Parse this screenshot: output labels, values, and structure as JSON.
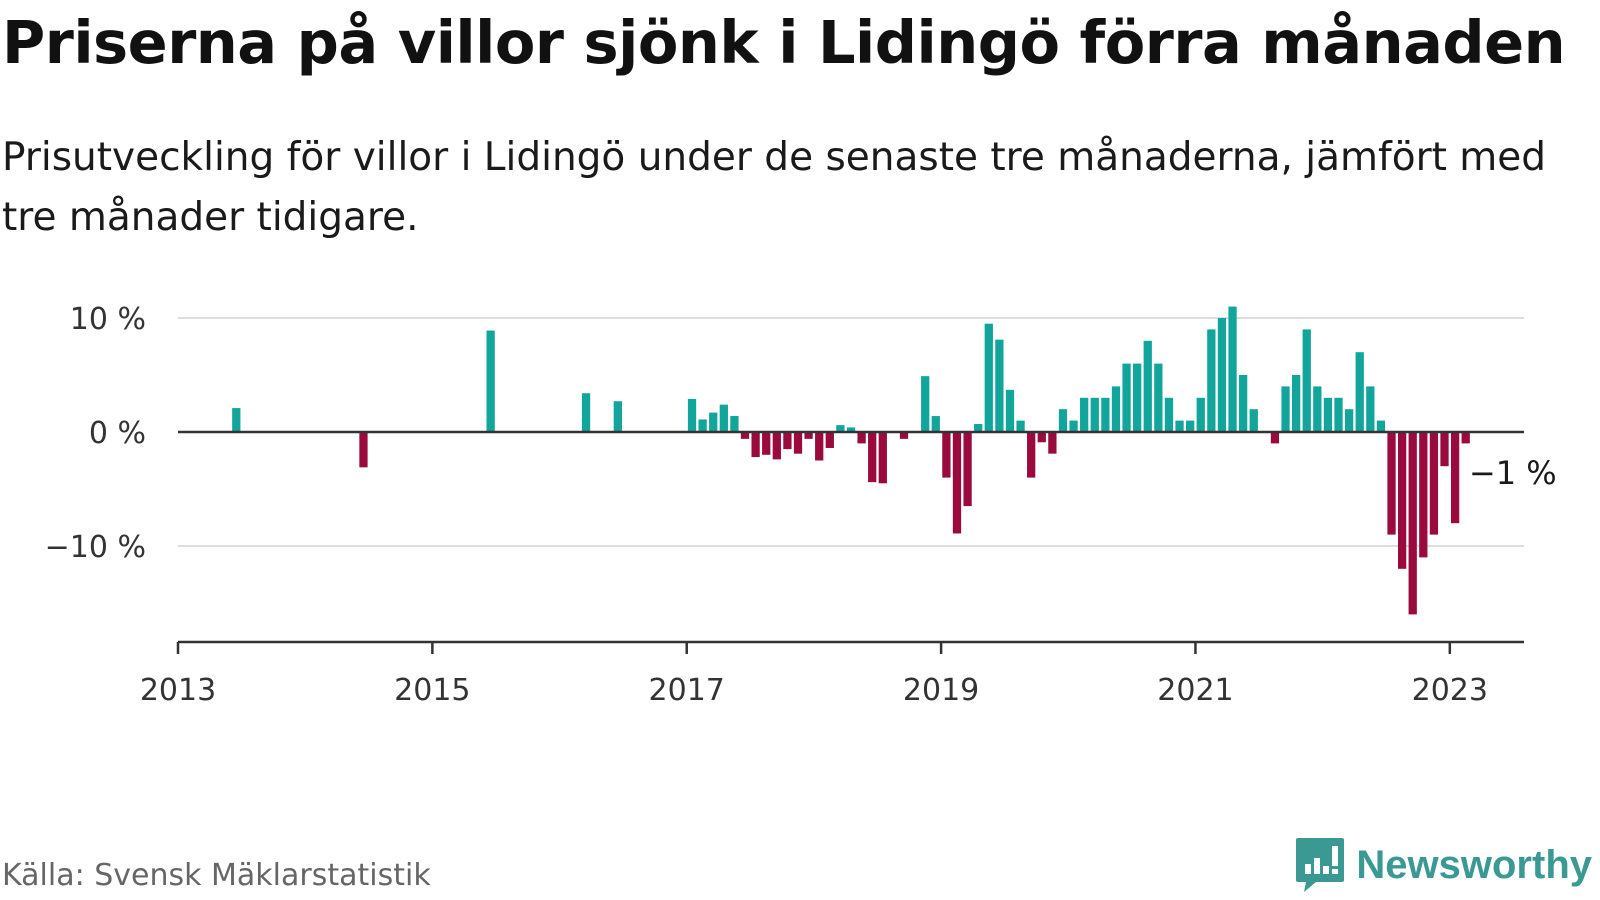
{
  "header": {
    "title": "Priserna på villor sjönk i Lidingö förra månaden",
    "subtitle": "Prisutveckling för villor i Lidingö under de senaste tre månaderna, jämfört med tre månader tidigare."
  },
  "footer": {
    "source": "Källa: Svensk Mäklarstatistik",
    "brand": "Newsworthy"
  },
  "colors": {
    "positive": "#12a59b",
    "negative": "#9b0a3d",
    "gridline": "#dddddd",
    "axis": "#333333",
    "brand": "#3a9a93"
  },
  "chart_data": {
    "type": "bar",
    "frequency": "monthly",
    "xlim": [
      "2013-01",
      "2023-08"
    ],
    "ylim": [
      -18,
      10
    ],
    "yticks": [
      {
        "value": 10,
        "label": "10 %"
      },
      {
        "value": 0,
        "label": "0 %"
      },
      {
        "value": -10,
        "label": "−10 %"
      }
    ],
    "xticks": [
      "2013",
      "2015",
      "2017",
      "2019",
      "2021",
      "2023"
    ],
    "annotation": {
      "date": "2023-03",
      "value": -1,
      "label": "−1 %"
    },
    "series": [
      {
        "values": [
          {
            "date": "2013-06",
            "value": 2.1
          },
          {
            "date": "2014-06",
            "value": -3.1
          },
          {
            "date": "2015-06",
            "value": 8.9
          },
          {
            "date": "2016-03",
            "value": 3.4
          },
          {
            "date": "2016-06",
            "value": 2.7
          },
          {
            "date": "2017-01",
            "value": 2.9
          },
          {
            "date": "2017-02",
            "value": 1.1
          },
          {
            "date": "2017-03",
            "value": 1.7
          },
          {
            "date": "2017-04",
            "value": 2.4
          },
          {
            "date": "2017-05",
            "value": 1.4
          },
          {
            "date": "2017-06",
            "value": -0.6
          },
          {
            "date": "2017-07",
            "value": -2.2
          },
          {
            "date": "2017-08",
            "value": -2.0
          },
          {
            "date": "2017-09",
            "value": -2.4
          },
          {
            "date": "2017-10",
            "value": -1.5
          },
          {
            "date": "2017-11",
            "value": -1.9
          },
          {
            "date": "2017-12",
            "value": -0.6
          },
          {
            "date": "2018-01",
            "value": -2.5
          },
          {
            "date": "2018-02",
            "value": -1.4
          },
          {
            "date": "2018-03",
            "value": 0.6
          },
          {
            "date": "2018-04",
            "value": 0.4
          },
          {
            "date": "2018-05",
            "value": -1.0
          },
          {
            "date": "2018-06",
            "value": -4.4
          },
          {
            "date": "2018-07",
            "value": -4.5
          },
          {
            "date": "2018-09",
            "value": -0.6
          },
          {
            "date": "2018-11",
            "value": 4.9
          },
          {
            "date": "2018-12",
            "value": 1.4
          },
          {
            "date": "2019-01",
            "value": -4.0
          },
          {
            "date": "2019-02",
            "value": -8.9
          },
          {
            "date": "2019-03",
            "value": -6.5
          },
          {
            "date": "2019-04",
            "value": 0.7
          },
          {
            "date": "2019-05",
            "value": 9.5
          },
          {
            "date": "2019-06",
            "value": 8.1
          },
          {
            "date": "2019-07",
            "value": 3.7
          },
          {
            "date": "2019-08",
            "value": 1.0
          },
          {
            "date": "2019-09",
            "value": -4.0
          },
          {
            "date": "2019-10",
            "value": -0.9
          },
          {
            "date": "2019-11",
            "value": -1.9
          },
          {
            "date": "2019-12",
            "value": 2.0
          },
          {
            "date": "2020-01",
            "value": 1.0
          },
          {
            "date": "2020-02",
            "value": 3.0
          },
          {
            "date": "2020-03",
            "value": 3.0
          },
          {
            "date": "2020-04",
            "value": 3.0
          },
          {
            "date": "2020-05",
            "value": 4.0
          },
          {
            "date": "2020-06",
            "value": 6.0
          },
          {
            "date": "2020-07",
            "value": 6.0
          },
          {
            "date": "2020-08",
            "value": 8.0
          },
          {
            "date": "2020-09",
            "value": 6.0
          },
          {
            "date": "2020-10",
            "value": 3.0
          },
          {
            "date": "2020-11",
            "value": 1.0
          },
          {
            "date": "2020-12",
            "value": 1.0
          },
          {
            "date": "2021-01",
            "value": 3.0
          },
          {
            "date": "2021-02",
            "value": 9.0
          },
          {
            "date": "2021-03",
            "value": 10.0
          },
          {
            "date": "2021-04",
            "value": 11.0
          },
          {
            "date": "2021-05",
            "value": 5.0
          },
          {
            "date": "2021-06",
            "value": 2.0
          },
          {
            "date": "2021-08",
            "value": -1.0
          },
          {
            "date": "2021-09",
            "value": 4.0
          },
          {
            "date": "2021-10",
            "value": 5.0
          },
          {
            "date": "2021-11",
            "value": 9.0
          },
          {
            "date": "2021-12",
            "value": 4.0
          },
          {
            "date": "2022-01",
            "value": 3.0
          },
          {
            "date": "2022-02",
            "value": 3.0
          },
          {
            "date": "2022-03",
            "value": 2.0
          },
          {
            "date": "2022-04",
            "value": 7.0
          },
          {
            "date": "2022-05",
            "value": 4.0
          },
          {
            "date": "2022-06",
            "value": 1.0
          },
          {
            "date": "2022-07",
            "value": -9.0
          },
          {
            "date": "2022-08",
            "value": -12.0
          },
          {
            "date": "2022-09",
            "value": -16.0
          },
          {
            "date": "2022-10",
            "value": -11.0
          },
          {
            "date": "2022-11",
            "value": -9.0
          },
          {
            "date": "2022-12",
            "value": -3.0
          },
          {
            "date": "2023-01",
            "value": -8.0
          },
          {
            "date": "2023-02",
            "value": -1.0
          }
        ]
      }
    ]
  }
}
